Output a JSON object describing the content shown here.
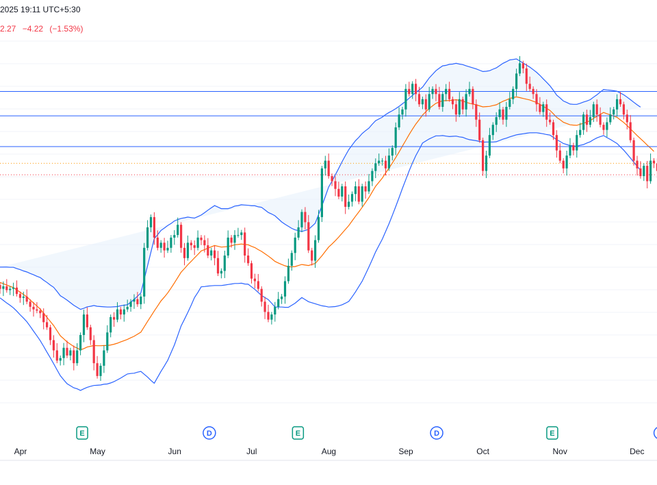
{
  "header": {
    "time_text": "2025 19:11 UTC+5:30",
    "last_price_fragment": "2.27",
    "change": "−4.22",
    "change_pct": "(−1.53%)"
  },
  "colors": {
    "bg": "#ffffff",
    "grid": "#f0f3fa",
    "up": "#089981",
    "down": "#f23645",
    "band_line": "#2962ff",
    "band_fill": "#e8f1fc",
    "basis": "#ff6d00",
    "hline": "#2962ff",
    "price_dotted": "#f23645",
    "price_dotted_alt": "#ff9800",
    "earnings": "#089981",
    "dividend": "#2962ff"
  },
  "chart_data": {
    "type": "candlestick",
    "indicator": "Bollinger Bands",
    "x_axis_labels": [
      "Apr",
      "May",
      "Jun",
      "Jul",
      "Aug",
      "Sep",
      "Oct",
      "Nov",
      "Dec"
    ],
    "ylim": [
      0,
      100
    ],
    "horizontal_lines": [
      85,
      75.5,
      63.5
    ],
    "dotted_levels": [
      {
        "value": 57,
        "color": "orange"
      },
      {
        "value": 52.5,
        "color": "red"
      }
    ],
    "events": [
      {
        "type": "E",
        "label": "E",
        "month_pos": 1.8
      },
      {
        "type": "D",
        "label": "D",
        "month_pos": 3.45
      },
      {
        "type": "E",
        "label": "E",
        "month_pos": 4.6
      },
      {
        "type": "D",
        "label": "D",
        "month_pos": 6.4
      },
      {
        "type": "E",
        "label": "E",
        "month_pos": 7.9
      },
      {
        "type": "D",
        "label": "D",
        "month_pos": 9.3
      }
    ],
    "close": [
      8,
      9,
      7.5,
      8,
      8.5,
      6,
      4.5,
      5,
      3,
      1,
      0,
      -0.5,
      -1.5,
      -5,
      -7,
      -12,
      -16,
      -20,
      -19,
      -15,
      -18,
      -16,
      -21,
      -16,
      -10,
      -2,
      -7,
      -12,
      -21,
      -26,
      -22,
      -16,
      -9,
      -3,
      -4,
      0,
      -2,
      0,
      1,
      3,
      4,
      2,
      5,
      24,
      32,
      36,
      28,
      24,
      26,
      23,
      24,
      28,
      29,
      33,
      24,
      20,
      26,
      25,
      24,
      28,
      27,
      25,
      21,
      23,
      20,
      14,
      15,
      21,
      28,
      26,
      29,
      29,
      30,
      21,
      18,
      12,
      11,
      8,
      3,
      -1,
      -4,
      -2,
      1,
      4,
      5,
      11,
      17,
      22,
      28,
      32,
      38,
      34,
      23,
      19,
      27,
      36,
      55,
      58,
      52,
      50,
      47,
      44,
      48,
      40,
      42,
      45,
      48,
      42,
      48,
      46,
      50,
      54,
      57,
      58,
      58,
      55,
      60,
      63,
      71,
      76,
      78,
      86,
      84,
      88,
      84,
      80,
      82,
      78,
      84,
      86,
      84,
      79,
      84,
      86,
      82,
      80,
      76,
      82,
      78,
      84,
      86,
      80,
      74,
      66,
      54,
      60,
      68,
      72,
      75,
      78,
      74,
      79,
      82,
      86,
      92,
      96,
      94,
      88,
      86,
      84,
      80,
      77,
      80,
      74,
      73,
      68,
      62,
      58,
      55,
      60,
      64,
      62,
      68,
      70,
      76,
      72,
      75,
      80,
      76,
      72,
      70,
      73,
      76,
      78,
      82,
      80,
      76,
      73,
      66,
      58,
      55,
      52,
      56,
      50,
      58,
      57,
      54,
      56
    ],
    "basis": [
      10.5,
      10,
      9.5,
      9,
      8.5,
      7.6,
      6.7,
      5.8,
      4.9,
      3.7,
      2.5,
      1.3,
      0.1,
      -1.5,
      -3.1,
      -4.7,
      -6.3,
      -8.3,
      -10.3,
      -11.5,
      -12.7,
      -13.6,
      -14.5,
      -15.1,
      -15.8,
      -15.3,
      -14.7,
      -14.4,
      -14.1,
      -14.2,
      -14.2,
      -14.1,
      -14.1,
      -13.9,
      -13.6,
      -13.2,
      -12.7,
      -12.2,
      -11.7,
      -11.1,
      -10.5,
      -9.7,
      -8.9,
      -6.8,
      -4.7,
      -2.7,
      -0.6,
      1.3,
      3.3,
      4.8,
      6.4,
      8.3,
      10.3,
      12.4,
      14.5,
      15.9,
      17.4,
      18.7,
      20.1,
      21.4,
      22.8,
      23.3,
      23.9,
      24.4,
      24.9,
      24.6,
      24.3,
      24.4,
      24.5,
      24.8,
      25.2,
      25.3,
      25.5,
      25.3,
      25.2,
      24.6,
      24.1,
      23.3,
      22.6,
      21.7,
      20.8,
      19.8,
      18.7,
      18.1,
      17.5,
      17,
      16.6,
      16.6,
      16.7,
      17.1,
      17.5,
      17.3,
      17.1,
      17.5,
      17.9,
      19.4,
      20.9,
      22.6,
      24.3,
      25.5,
      26.8,
      28.2,
      29.7,
      31.2,
      32.7,
      34.5,
      36.3,
      38,
      39.8,
      41.7,
      43.6,
      45.8,
      48,
      49.6,
      51.2,
      53.2,
      55.1,
      57.1,
      59.2,
      61.4,
      63.7,
      65.9,
      68.2,
      70.3,
      72.3,
      74,
      75.8,
      77.1,
      78.4,
      79.4,
      80.4,
      80.9,
      81.4,
      81.4,
      81.5,
      81.6,
      81.8,
      81.5,
      81.3,
      80.8,
      80.4,
      80.1,
      79.8,
      79.4,
      79,
      79.1,
      79.2,
      79.5,
      79.8,
      80.5,
      81.2,
      81.7,
      82.3,
      82.6,
      82.9,
      82.6,
      82.3,
      82,
      81.7,
      81.2,
      80.7,
      80,
      79.2,
      78.4,
      77.6,
      76.3,
      74.9,
      74,
      73,
      72.5,
      72,
      71.9,
      71.8,
      72.2,
      72.6,
      73.1,
      73.6,
      74.5,
      75.3,
      76.1,
      76.8,
      76.3,
      75.9,
      75.4,
      74.9,
      73.9,
      72.9,
      71.7,
      70.4,
      69.1,
      67.8,
      66.6,
      65.4,
      64.1,
      62.9,
      61.6
    ],
    "band_width": [
      6,
      6.5,
      7,
      7.4,
      7.9,
      8.3,
      8.8,
      9.2,
      9.7,
      10.3,
      11,
      11.6,
      12.3,
      12.9,
      13.6,
      14.2,
      14.9,
      15.3,
      15.6,
      16,
      16.3,
      16.2,
      16.1,
      15.9,
      15.8,
      15.7,
      15.7,
      15.6,
      15.6,
      15.4,
      15.3,
      15.1,
      15,
      14.8,
      14.6,
      14.3,
      14.1,
      13.8,
      13.5,
      13.9,
      14.4,
      14.8,
      15.3,
      18.5,
      21.7,
      25,
      28.2,
      27.8,
      27.5,
      26.9,
      26.3,
      25.2,
      24.2,
      22.6,
      21,
      19.8,
      18.6,
      17.1,
      15.5,
      14.8,
      14,
      14.4,
      14.8,
      15.2,
      15.6,
      15.3,
      15,
      14.9,
      14.8,
      14.9,
      15.1,
      15.2,
      15.3,
      15.4,
      15.4,
      15.8,
      16.3,
      16.7,
      17.2,
      17.1,
      17,
      17.4,
      17.8,
      17.2,
      16.6,
      16.2,
      15.8,
      15,
      14.3,
      13.6,
      12.9,
      13.5,
      14.1,
      14.9,
      15.7,
      17.6,
      19.5,
      21.4,
      23.4,
      24.5,
      25.7,
      26.8,
      27.9,
      28.8,
      29.6,
      29.6,
      29.5,
      29.1,
      28.8,
      28,
      27.1,
      26.4,
      25.6,
      24.7,
      23.8,
      22.8,
      21.7,
      20.4,
      19.1,
      17.8,
      16.5,
      15.3,
      14.2,
      13.2,
      12.3,
      11.6,
      10.9,
      11.4,
      11.9,
      12.3,
      12.7,
      13.2,
      13.6,
      13.8,
      14.1,
      14.1,
      14.2,
      14.2,
      14.2,
      14.2,
      14.2,
      14.1,
      14,
      13.9,
      13.8,
      13.8,
      13.9,
      14.2,
      14.4,
      14.6,
      14.8,
      14.9,
      15,
      14.9,
      14.8,
      14.3,
      13.8,
      13.3,
      12.8,
      12.3,
      11.8,
      11.3,
      10.7,
      10.2,
      9.6,
      9.2,
      8.7,
      8.5,
      8.3,
      8.2,
      8.1,
      8.1,
      8.2,
      8.2,
      8.3,
      8.2,
      8.2,
      8.3,
      8.4,
      8.7,
      9,
      9.3,
      9.6,
      9.9,
      10.2,
      10.5,
      10.8,
      11.1,
      11.4,
      11.7,
      12,
      12.3
    ]
  }
}
